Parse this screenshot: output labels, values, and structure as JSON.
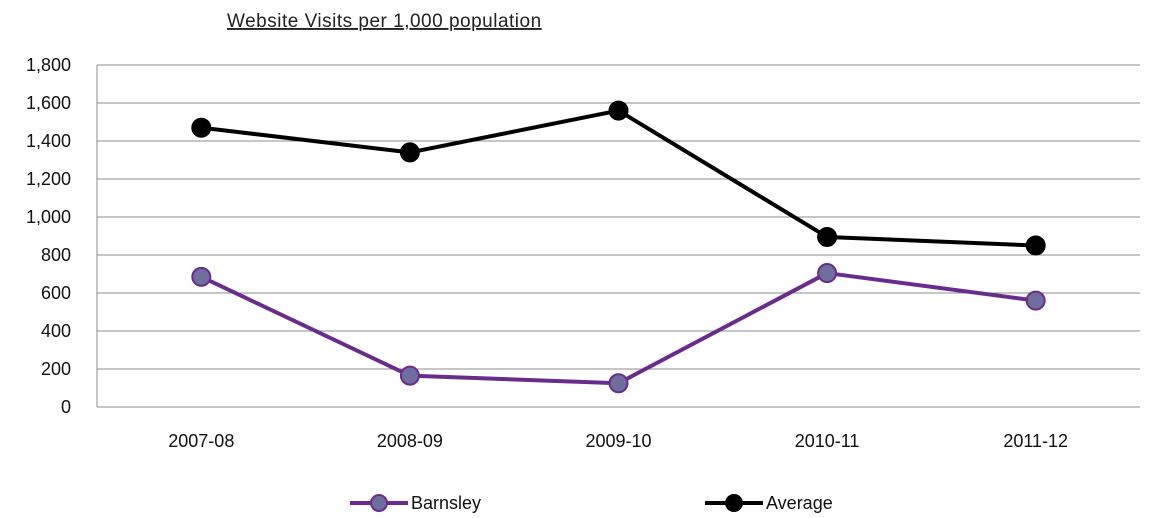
{
  "chart_data": {
    "type": "line",
    "title": "Website Visits per 1,000 population",
    "xlabel": "",
    "ylabel": "",
    "categories": [
      "2007-08",
      "2008-09",
      "2009-10",
      "2010-11",
      "2011-12"
    ],
    "ylim": [
      0,
      1800
    ],
    "yticks": [
      0,
      200,
      400,
      600,
      800,
      1000,
      1200,
      1400,
      1600,
      1800
    ],
    "ytick_labels": [
      "0",
      "200",
      "400",
      "600",
      "800",
      "1,000",
      "1,200",
      "1,400",
      "1,600",
      "1,800"
    ],
    "grid": true,
    "legend_position": "bottom",
    "series": [
      {
        "name": "Barnsley",
        "values": [
          685,
          165,
          125,
          705,
          560
        ],
        "color": "#6a2c8c",
        "marker_fill": "#6f6c9e"
      },
      {
        "name": "Average",
        "values": [
          1470,
          1340,
          1560,
          895,
          850
        ],
        "color": "#000000",
        "marker_fill": "#000000"
      }
    ]
  }
}
